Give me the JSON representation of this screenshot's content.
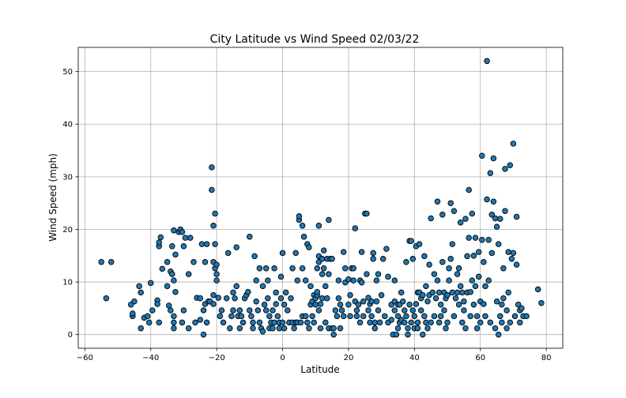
{
  "chart_data": {
    "type": "scatter",
    "title": "City Latitude vs Wind Speed 02/03/22",
    "xlabel": "Latitude",
    "ylabel": "Wind Speed (mph)",
    "xlim": [
      -62,
      85
    ],
    "ylim": [
      -2.6,
      54.6
    ],
    "xticks": [
      -60,
      -40,
      -20,
      0,
      20,
      40,
      60,
      80
    ],
    "yticks": [
      0,
      10,
      20,
      30,
      40,
      50
    ],
    "grid": true,
    "legend": "none",
    "marker_color": "#1f77b4",
    "marker_edge": "#000000",
    "points": [
      [
        -55,
        13.8
      ],
      [
        -53.5,
        6.9
      ],
      [
        -52,
        13.8
      ],
      [
        -46,
        5.7
      ],
      [
        -45.5,
        3.5
      ],
      [
        -45.5,
        4
      ],
      [
        -45,
        6.3
      ],
      [
        -43.5,
        9.2
      ],
      [
        -43,
        8
      ],
      [
        -43,
        1.2
      ],
      [
        -42,
        3.2
      ],
      [
        -41,
        3.5
      ],
      [
        -40.5,
        2.3
      ],
      [
        -40,
        9.8
      ],
      [
        -39.5,
        4.6
      ],
      [
        -38,
        6.5
      ],
      [
        -38,
        5.8
      ],
      [
        -37.5,
        2.3
      ],
      [
        -37.5,
        16.8
      ],
      [
        -37.5,
        17.5
      ],
      [
        -37,
        18.5
      ],
      [
        -36.5,
        12.5
      ],
      [
        -35,
        13.8
      ],
      [
        -35,
        9.2
      ],
      [
        -34.5,
        5.5
      ],
      [
        -34,
        4.6
      ],
      [
        -34,
        12
      ],
      [
        -33.5,
        11.5
      ],
      [
        -33.5,
        16.8
      ],
      [
        -33,
        3.5
      ],
      [
        -33,
        10.3
      ],
      [
        -33,
        2.3
      ],
      [
        -33,
        1.2
      ],
      [
        -33,
        19.8
      ],
      [
        -32.5,
        8.1
      ],
      [
        -32.5,
        15.2
      ],
      [
        -31.5,
        19.5
      ],
      [
        -31,
        20
      ],
      [
        -30.5,
        2.3
      ],
      [
        -30.5,
        19.5
      ],
      [
        -30,
        16.8
      ],
      [
        -30,
        4.6
      ],
      [
        -29.5,
        18.4
      ],
      [
        -28.5,
        11.5
      ],
      [
        -28.5,
        1.2
      ],
      [
        -28,
        18.4
      ],
      [
        -27,
        13.8
      ],
      [
        -26.5,
        2.3
      ],
      [
        -26,
        7
      ],
      [
        -25,
        6.9
      ],
      [
        -25,
        2.8
      ],
      [
        -24.5,
        17.2
      ],
      [
        -24,
        4.6
      ],
      [
        -24,
        0
      ],
      [
        -23.5,
        13.8
      ],
      [
        -23.5,
        5.8
      ],
      [
        -23,
        2.3
      ],
      [
        -23,
        17.2
      ],
      [
        -22.5,
        6.3
      ],
      [
        -22,
        6.3
      ],
      [
        -21.5,
        31.8
      ],
      [
        -21.5,
        27.5
      ],
      [
        -21,
        13.8
      ],
      [
        -21,
        20.7
      ],
      [
        -21,
        5.8
      ],
      [
        -21,
        7.5
      ],
      [
        -20.5,
        12.6
      ],
      [
        -20.5,
        17.2
      ],
      [
        -20.5,
        23
      ],
      [
        -20,
        11.5
      ],
      [
        -20,
        10.3
      ],
      [
        -20,
        13.3
      ],
      [
        -19.5,
        7
      ],
      [
        -19,
        3.5
      ],
      [
        -18.5,
        4.6
      ],
      [
        -18,
        2.3
      ],
      [
        -17,
        6.9
      ],
      [
        -16.5,
        15.5
      ],
      [
        -16,
        1.2
      ],
      [
        -15.5,
        3.5
      ],
      [
        -15,
        4.6
      ],
      [
        -15,
        8
      ],
      [
        -14.5,
        6.9
      ],
      [
        -14,
        9.2
      ],
      [
        -14,
        16.6
      ],
      [
        -13.5,
        3.5
      ],
      [
        -13,
        4.6
      ],
      [
        -13,
        1.2
      ],
      [
        -12.5,
        3.5
      ],
      [
        -12,
        2.3
      ],
      [
        -11.5,
        6.9
      ],
      [
        -11,
        7.5
      ],
      [
        -10.5,
        8.1
      ],
      [
        -10,
        4.6
      ],
      [
        -10,
        18.6
      ],
      [
        -9.5,
        3.5
      ],
      [
        -9,
        1.2
      ],
      [
        -9,
        2.3
      ],
      [
        -8.5,
        14.9
      ],
      [
        -8,
        10.3
      ],
      [
        -8,
        6.3
      ],
      [
        -7.5,
        4.6
      ],
      [
        -7,
        12.6
      ],
      [
        -7,
        2.3
      ],
      [
        -6.5,
        1.2
      ],
      [
        -6,
        0.6
      ],
      [
        -6,
        9.2
      ],
      [
        -5.5,
        5.7
      ],
      [
        -5,
        4.6
      ],
      [
        -5,
        12.6
      ],
      [
        -4.5,
        10.3
      ],
      [
        -4.5,
        6.9
      ],
      [
        -4,
        3.5
      ],
      [
        -4,
        1.2
      ],
      [
        -3.5,
        2.3
      ],
      [
        -3,
        4.6
      ],
      [
        -3,
        1.2
      ],
      [
        -2.5,
        12.6
      ],
      [
        -2.5,
        2.3
      ],
      [
        -2,
        5.8
      ],
      [
        -2,
        8
      ],
      [
        -1.5,
        3.5
      ],
      [
        -1,
        1.2
      ],
      [
        -1,
        2.3
      ],
      [
        -0.5,
        6.9
      ],
      [
        -0.5,
        11
      ],
      [
        0,
        15.5
      ],
      [
        0,
        2.3
      ],
      [
        0.5,
        5.7
      ],
      [
        0.5,
        1.2
      ],
      [
        1,
        8
      ],
      [
        1.5,
        4.6
      ],
      [
        2,
        2.3
      ],
      [
        2.5,
        6.9
      ],
      [
        3,
        2.3
      ],
      [
        3,
        12.6
      ],
      [
        3.5,
        1.2
      ],
      [
        4,
        15.5
      ],
      [
        4,
        2.3
      ],
      [
        4.5,
        10.3
      ],
      [
        4.5,
        2.3
      ],
      [
        5,
        21.8
      ],
      [
        5,
        22.5
      ],
      [
        5.5,
        2.3
      ],
      [
        6,
        20.7
      ],
      [
        6,
        3.5
      ],
      [
        6,
        12.6
      ],
      [
        6.5,
        18.6
      ],
      [
        7,
        10.3
      ],
      [
        7,
        3.5
      ],
      [
        7.5,
        17.2
      ],
      [
        7.5,
        2.3
      ],
      [
        8,
        16.6
      ],
      [
        8,
        1.2
      ],
      [
        8.5,
        5.7
      ],
      [
        8.5,
        9.2
      ],
      [
        9,
        3.5
      ],
      [
        9,
        6.3
      ],
      [
        9.5,
        2.3
      ],
      [
        9.5,
        7.5
      ],
      [
        10,
        6.9
      ],
      [
        10,
        5.7
      ],
      [
        10.5,
        7.5
      ],
      [
        10.5,
        12.6
      ],
      [
        10.5,
        8.1
      ],
      [
        11,
        14.9
      ],
      [
        11,
        13.8
      ],
      [
        11,
        20.7
      ],
      [
        11,
        4.6
      ],
      [
        11.5,
        5.8
      ],
      [
        11.5,
        1.2
      ],
      [
        12,
        14.4
      ],
      [
        12,
        6.9
      ],
      [
        12,
        11.5
      ],
      [
        12.5,
        16
      ],
      [
        12.5,
        12.6
      ],
      [
        13,
        9.2
      ],
      [
        13,
        2.3
      ],
      [
        13.5,
        6.9
      ],
      [
        13.5,
        14.4
      ],
      [
        14,
        1.2
      ],
      [
        14,
        11.5
      ],
      [
        14,
        21.8
      ],
      [
        14.5,
        14.4
      ],
      [
        15,
        14.4
      ],
      [
        15,
        1.2
      ],
      [
        15.5,
        0
      ],
      [
        15.5,
        1.2
      ],
      [
        16,
        4.6
      ],
      [
        16.5,
        3.5
      ],
      [
        17,
        10.3
      ],
      [
        17,
        6.9
      ],
      [
        17.5,
        1.2
      ],
      [
        17.5,
        5.7
      ],
      [
        18,
        4.6
      ],
      [
        18.5,
        15.7
      ],
      [
        18.5,
        3.5
      ],
      [
        19,
        9.9
      ],
      [
        19,
        12.6
      ],
      [
        20,
        5.7
      ],
      [
        20,
        10.5
      ],
      [
        20.5,
        3.5
      ],
      [
        20.5,
        7.5
      ],
      [
        21,
        12.6
      ],
      [
        21.5,
        10.3
      ],
      [
        21.5,
        12.6
      ],
      [
        22,
        20.2
      ],
      [
        22,
        6.3
      ],
      [
        22.5,
        4.6
      ],
      [
        22.5,
        3.5
      ],
      [
        23,
        5.7
      ],
      [
        23.5,
        10.3
      ],
      [
        23.5,
        2.3
      ],
      [
        24,
        15.7
      ],
      [
        24,
        9.9
      ],
      [
        24.5,
        6.3
      ],
      [
        24.5,
        3.5
      ],
      [
        25,
        23
      ],
      [
        25.5,
        11.5
      ],
      [
        25.5,
        23
      ],
      [
        26,
        7
      ],
      [
        26,
        4.6
      ],
      [
        26.5,
        2.3
      ],
      [
        26.5,
        5.8
      ],
      [
        27,
        6.3
      ],
      [
        27,
        3.5
      ],
      [
        27.5,
        14.4
      ],
      [
        27.5,
        15.5
      ],
      [
        28,
        1.2
      ],
      [
        28,
        2.3
      ],
      [
        28.5,
        10.3
      ],
      [
        28.5,
        6.3
      ],
      [
        29,
        11.5
      ],
      [
        29,
        4.6
      ],
      [
        29.5,
        2.3
      ],
      [
        30,
        7.5
      ],
      [
        30.5,
        14.4
      ],
      [
        31,
        3.5
      ],
      [
        31.5,
        16.3
      ],
      [
        32,
        11
      ],
      [
        32,
        2.3
      ],
      [
        33,
        5.7
      ],
      [
        33,
        2.8
      ],
      [
        33.5,
        0
      ],
      [
        34,
        10.3
      ],
      [
        34,
        6.3
      ],
      [
        34,
        4.6
      ],
      [
        34.5,
        0
      ],
      [
        35,
        5.7
      ],
      [
        35,
        1.2
      ],
      [
        35,
        3.5
      ],
      [
        35.5,
        5.7
      ],
      [
        35.5,
        2.3
      ],
      [
        36,
        8
      ],
      [
        36,
        2.8
      ],
      [
        36.5,
        6.3
      ],
      [
        37,
        4.6
      ],
      [
        37,
        2.3
      ],
      [
        37.5,
        13.8
      ],
      [
        37.5,
        3.5
      ],
      [
        38,
        0
      ],
      [
        38,
        1.2
      ],
      [
        38.5,
        17.8
      ],
      [
        38.5,
        5.7
      ],
      [
        39,
        17.8
      ],
      [
        39,
        2.3
      ],
      [
        39.5,
        14.4
      ],
      [
        39.5,
        4.6
      ],
      [
        40,
        1.2
      ],
      [
        40,
        3.5
      ],
      [
        40.5,
        16.8
      ],
      [
        40.5,
        5.8
      ],
      [
        41,
        8
      ],
      [
        41,
        2.3
      ],
      [
        41,
        1.2
      ],
      [
        41.5,
        17.2
      ],
      [
        41.5,
        8
      ],
      [
        42,
        4.6
      ],
      [
        42,
        6.9
      ],
      [
        42.5,
        7.5
      ],
      [
        42.5,
        0
      ],
      [
        43,
        14.9
      ],
      [
        43,
        3.5
      ],
      [
        43.5,
        9.2
      ],
      [
        43.5,
        2.3
      ],
      [
        44,
        6.3
      ],
      [
        44,
        1.2
      ],
      [
        44.5,
        7.5
      ],
      [
        44.5,
        13.3
      ],
      [
        45,
        22.1
      ],
      [
        45,
        2.3
      ],
      [
        45.5,
        8
      ],
      [
        46,
        11.5
      ],
      [
        46,
        3.5
      ],
      [
        46.5,
        6.9
      ],
      [
        47,
        10.3
      ],
      [
        47,
        25.3
      ],
      [
        47.5,
        8
      ],
      [
        47.5,
        2.3
      ],
      [
        48,
        5.7
      ],
      [
        48,
        3.5
      ],
      [
        48.5,
        22.8
      ],
      [
        48.5,
        13.8
      ],
      [
        49,
        8
      ],
      [
        49,
        4.6
      ],
      [
        49.5,
        1.2
      ],
      [
        49.5,
        6.9
      ],
      [
        50,
        7.5
      ],
      [
        50,
        2.3
      ],
      [
        50.5,
        12.6
      ],
      [
        50.5,
        10.3
      ],
      [
        51,
        14.4
      ],
      [
        51,
        25
      ],
      [
        51.5,
        17.2
      ],
      [
        51.5,
        8
      ],
      [
        52,
        23.5
      ],
      [
        52,
        3.5
      ],
      [
        52.5,
        6.9
      ],
      [
        53,
        8
      ],
      [
        53,
        11.5
      ],
      [
        53.5,
        12.6
      ],
      [
        53.5,
        5.7
      ],
      [
        54,
        21.3
      ],
      [
        54,
        9.2
      ],
      [
        54.5,
        2.3
      ],
      [
        54.5,
        8
      ],
      [
        55,
        6.3
      ],
      [
        55,
        4.6
      ],
      [
        55.5,
        22
      ],
      [
        55.5,
        1.2
      ],
      [
        56,
        8
      ],
      [
        56,
        14.9
      ],
      [
        56.5,
        27.5
      ],
      [
        56.5,
        18.4
      ],
      [
        57,
        3.5
      ],
      [
        57,
        8.1
      ],
      [
        57.5,
        23
      ],
      [
        57.5,
        10.3
      ],
      [
        58,
        15
      ],
      [
        58,
        5.7
      ],
      [
        58.5,
        18.4
      ],
      [
        58.5,
        9.2
      ],
      [
        59,
        1.2
      ],
      [
        59,
        3.5
      ],
      [
        59.5,
        15.7
      ],
      [
        59.5,
        11
      ],
      [
        60,
        6.3
      ],
      [
        60,
        2.3
      ],
      [
        60.5,
        34
      ],
      [
        60.5,
        18
      ],
      [
        61,
        13.8
      ],
      [
        61,
        5.8
      ],
      [
        61.5,
        9.2
      ],
      [
        61.5,
        3.5
      ],
      [
        62,
        25.7
      ],
      [
        62,
        52
      ],
      [
        62.5,
        18
      ],
      [
        62.5,
        10.3
      ],
      [
        63,
        30.7
      ],
      [
        63,
        2.3
      ],
      [
        63.5,
        22.8
      ],
      [
        63.5,
        15.5
      ],
      [
        64,
        33.5
      ],
      [
        64,
        25.3
      ],
      [
        64.5,
        22.1
      ],
      [
        64.5,
        1.2
      ],
      [
        65,
        20.5
      ],
      [
        65,
        6.3
      ],
      [
        65.5,
        17.2
      ],
      [
        65.5,
        0
      ],
      [
        66,
        3.5
      ],
      [
        66,
        22
      ],
      [
        66.5,
        5.7
      ],
      [
        66.5,
        2.3
      ],
      [
        67,
        12.6
      ],
      [
        67,
        6.9
      ],
      [
        67.5,
        31.5
      ],
      [
        67.5,
        23.5
      ],
      [
        68,
        4.6
      ],
      [
        68,
        1.2
      ],
      [
        68.5,
        15.7
      ],
      [
        68.5,
        8
      ],
      [
        69,
        32.2
      ],
      [
        69,
        2.3
      ],
      [
        69.5,
        14.4
      ],
      [
        70,
        36.3
      ],
      [
        70,
        15.5
      ],
      [
        70.5,
        3.5
      ],
      [
        71,
        13.3
      ],
      [
        71,
        22.4
      ],
      [
        71.5,
        5.7
      ],
      [
        72,
        2.3
      ],
      [
        72,
        4.6
      ],
      [
        72.5,
        5
      ],
      [
        73,
        3.5
      ],
      [
        74,
        3.5
      ],
      [
        77.5,
        8.6
      ],
      [
        78.5,
        6
      ]
    ]
  }
}
